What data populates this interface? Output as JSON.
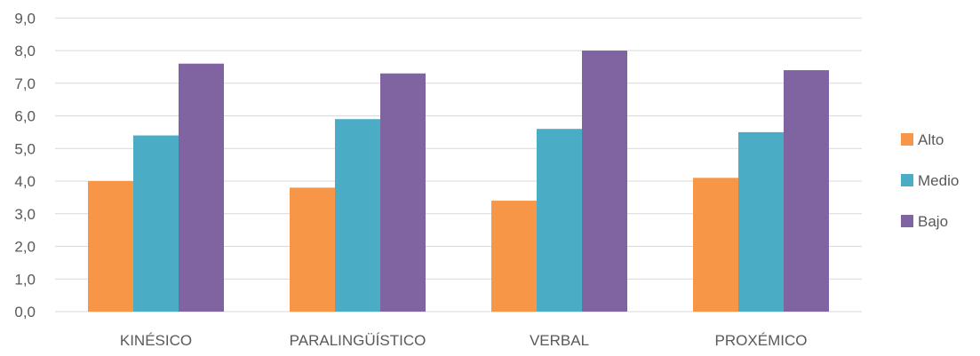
{
  "chart_data": {
    "type": "bar",
    "categories": [
      "KINÉSICO",
      "PARALINGÜÍSTICO",
      "VERBAL",
      "PROXÉMICO"
    ],
    "series": [
      {
        "name": "Alto",
        "color": "#F79646",
        "values": [
          4.0,
          3.8,
          3.4,
          4.1
        ]
      },
      {
        "name": "Medio",
        "color": "#4BACC6",
        "values": [
          5.4,
          5.9,
          5.6,
          5.5
        ]
      },
      {
        "name": "Bajo",
        "color": "#8064A2",
        "values": [
          7.6,
          7.3,
          8.0,
          7.4
        ]
      }
    ],
    "yticks": [
      "0,0",
      "1,0",
      "2,0",
      "3,0",
      "4,0",
      "5,0",
      "6,0",
      "7,0",
      "8,0",
      "9,0"
    ],
    "ylim": [
      0,
      9
    ],
    "grid": true,
    "legend_position": "right",
    "colors": {
      "gridline": "#D9D9D9",
      "text": "#595959"
    }
  }
}
